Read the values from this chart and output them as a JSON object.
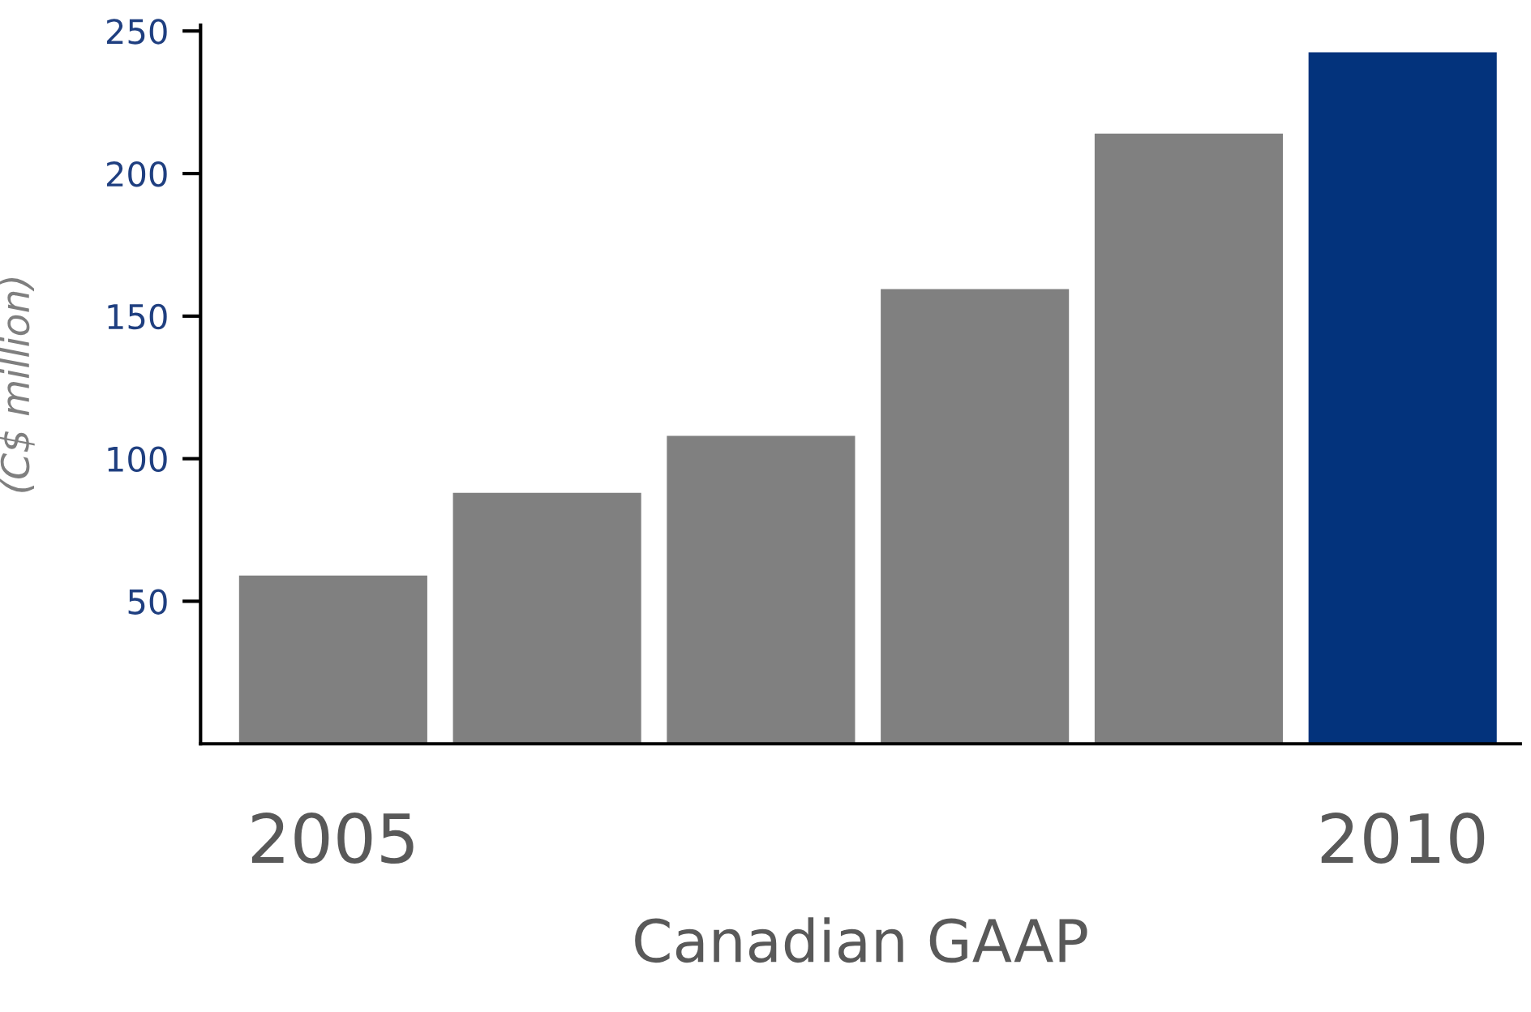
{
  "chart_data": {
    "type": "bar",
    "categories": [
      "2005",
      null,
      null,
      null,
      null,
      "2010"
    ],
    "values": [
      59,
      88,
      108,
      159.5,
      214,
      242.5
    ],
    "colors": [
      "#808080",
      "#808080",
      "#808080",
      "#808080",
      "#808080",
      "#03337c"
    ],
    "ylabel": "(C$ million)",
    "xlabel": "Canadian GAAP",
    "ylim": [
      0,
      252
    ],
    "yticks": [
      50,
      100,
      150,
      200,
      250
    ],
    "grid": false,
    "legend": false
  }
}
